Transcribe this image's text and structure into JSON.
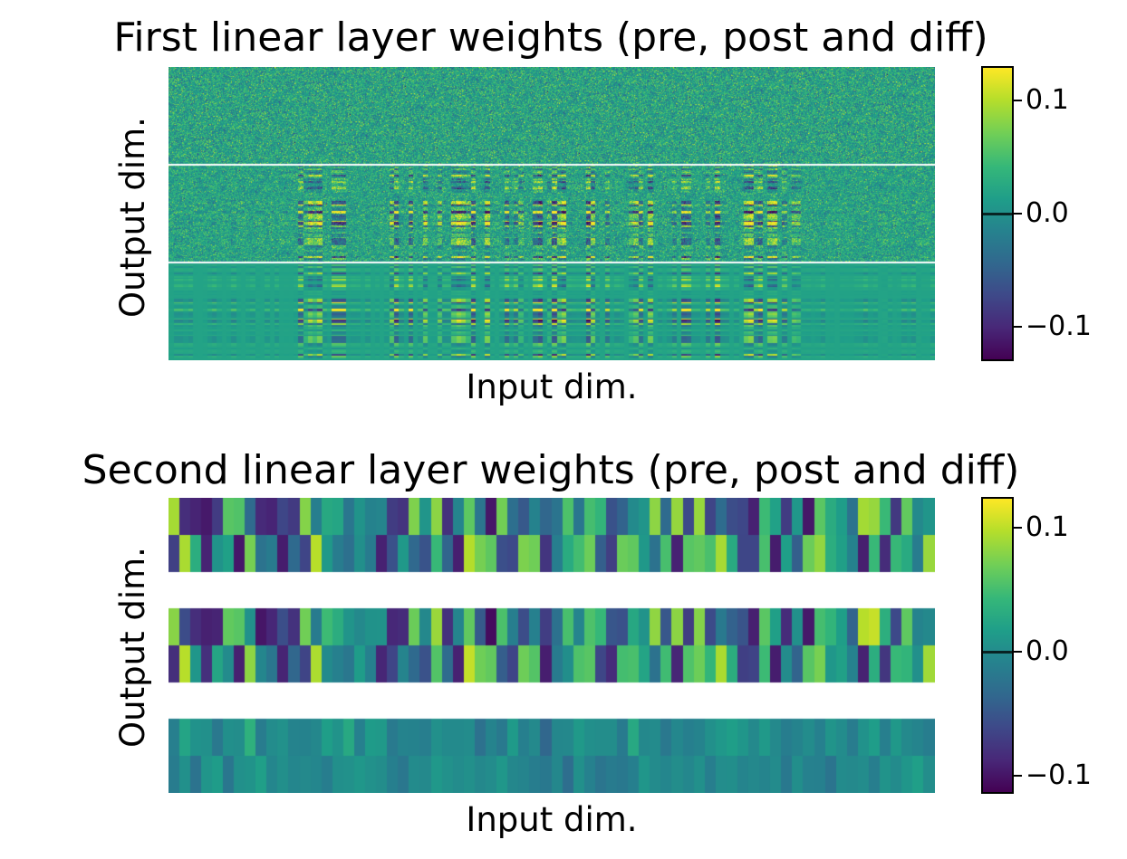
{
  "chart_data": [
    {
      "type": "heatmap",
      "title": "First linear layer weights (pre, post and diff)",
      "xlabel": "Input dim.",
      "ylabel": "Output dim.",
      "colormap": "viridis",
      "color_range": [
        -0.13,
        0.13
      ],
      "panels": [
        "pre",
        "post",
        "diff"
      ],
      "colorbar_ticks": [
        {
          "value": 0.1,
          "label": "0.1"
        },
        {
          "value": 0.0,
          "label": "0.0"
        },
        {
          "value": -0.1,
          "label": "−0.1"
        }
      ]
    },
    {
      "type": "heatmap",
      "title": "Second linear layer weights (pre, post and diff)",
      "xlabel": "Input dim.",
      "ylabel": "Output dim.",
      "colormap": "viridis",
      "color_range": [
        -0.115,
        0.125
      ],
      "panels": [
        "pre",
        "post",
        "diff"
      ],
      "colorbar_ticks": [
        {
          "value": 0.1,
          "label": "0.1"
        },
        {
          "value": 0.0,
          "label": "0.0"
        },
        {
          "value": -0.1,
          "label": "−0.1"
        }
      ]
    }
  ],
  "colors": {
    "viridis": [
      "#440154",
      "#482878",
      "#3e4989",
      "#31688e",
      "#26828e",
      "#1f9e89",
      "#35b779",
      "#6ece58",
      "#b5de2b",
      "#fde725"
    ],
    "separator": "#ffffff"
  }
}
